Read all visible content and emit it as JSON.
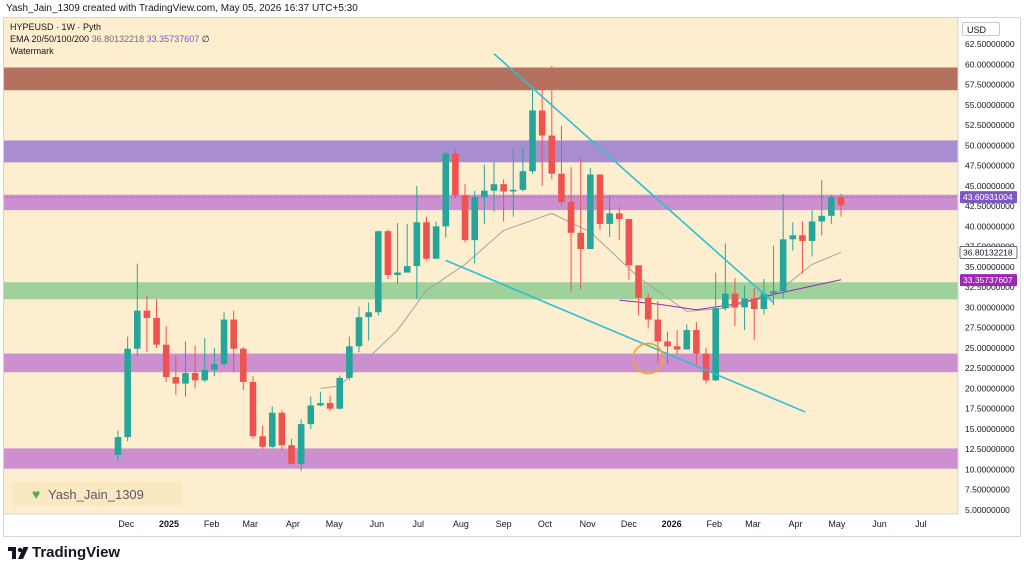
{
  "header": {
    "caption": "Yash_Jain_1309 created with TradingView.com, May 05, 2026 16:37 UTC+5:30"
  },
  "legend": {
    "title": "HYPEUSD · 1W · Pyth",
    "ema_label": "EMA 20/50/100/200",
    "ema_value_1": "36.80132218",
    "ema_value_2": "33.35737607",
    "ema_value_3": "∅",
    "watermark": "Watermark"
  },
  "currency": "USD",
  "watermark": {
    "label": "Yash_Jain_1309",
    "icon": "green-heart-icon"
  },
  "footer": {
    "brand": "TradingView",
    "icon": "tradingview-logo-icon"
  },
  "colors": {
    "background": "#fdeecf",
    "up": "#26a69a",
    "down": "#ef5350",
    "band_red": "#b57160",
    "band_purple": "#a88dd0",
    "band_pink": "#cc8fd0",
    "band_green": "#9fd19a",
    "trendline": "#2cc0d6",
    "ema_slow": "#9c27b0",
    "ema_fast": "#a3a3a3",
    "circle": "#f7a227"
  },
  "chart_data": {
    "type": "candlestick",
    "symbol": "HYPEUSD",
    "interval": "1W",
    "source": "Pyth",
    "y_axis": {
      "min": 5.0,
      "max": 62.5,
      "ticks": [
        "62.50000000",
        "60.00000000",
        "57.50000000",
        "55.00000000",
        "52.50000000",
        "50.00000000",
        "47.50000000",
        "45.00000000",
        "42.50000000",
        "40.00000000",
        "37.50000000",
        "35.00000000",
        "32.50000000",
        "30.00000000",
        "27.50000000",
        "25.00000000",
        "22.50000000",
        "20.00000000",
        "17.50000000",
        "15.00000000",
        "12.50000000",
        "10.00000000",
        "7.50000000",
        "5.00000000"
      ]
    },
    "x_axis": {
      "start_date": "2024-11-25",
      "months": [
        {
          "label": "Dec",
          "date": "2024-12-01"
        },
        {
          "label": "2025",
          "date": "2025-01-01"
        },
        {
          "label": "Feb",
          "date": "2025-02-01"
        },
        {
          "label": "Mar",
          "date": "2025-03-01"
        },
        {
          "label": "Apr",
          "date": "2025-04-01"
        },
        {
          "label": "May",
          "date": "2025-05-01"
        },
        {
          "label": "Jun",
          "date": "2025-06-01"
        },
        {
          "label": "Jul",
          "date": "2025-07-01"
        },
        {
          "label": "Aug",
          "date": "2025-08-01"
        },
        {
          "label": "Sep",
          "date": "2025-09-01"
        },
        {
          "label": "Oct",
          "date": "2025-10-01"
        },
        {
          "label": "Nov",
          "date": "2025-11-01"
        },
        {
          "label": "Dec",
          "date": "2025-12-01"
        },
        {
          "label": "2026",
          "date": "2026-01-01"
        },
        {
          "label": "Feb",
          "date": "2026-02-01"
        },
        {
          "label": "Mar",
          "date": "2026-03-01"
        },
        {
          "label": "Apr",
          "date": "2026-04-01"
        },
        {
          "label": "May",
          "date": "2026-05-01"
        },
        {
          "label": "Jun",
          "date": "2026-06-01"
        },
        {
          "label": "Jul",
          "date": "2026-07-01"
        }
      ]
    },
    "price_labels": [
      {
        "value": 43.60931004,
        "text": "43.60931004",
        "color": "#7e57c2"
      },
      {
        "value": 36.80132218,
        "text": "36.80132218",
        "color": "#ffffff"
      },
      {
        "value": 33.35737607,
        "text": "33.35737607",
        "color": "#9c27b0"
      }
    ],
    "zones": [
      {
        "low": 56.8,
        "high": 59.6,
        "color": "band_red"
      },
      {
        "low": 47.9,
        "high": 50.6,
        "color": "band_purple"
      },
      {
        "low": 42.0,
        "high": 43.9,
        "color": "band_pink"
      },
      {
        "low": 31.0,
        "high": 33.1,
        "color": "band_green"
      },
      {
        "low": 22.0,
        "high": 24.3,
        "color": "band_pink"
      },
      {
        "low": 10.1,
        "high": 12.6,
        "color": "band_pink"
      }
    ],
    "trendlines": [
      {
        "from": {
          "date": "2025-08-25",
          "price": 61.3
        },
        "to": {
          "date": "2026-03-16",
          "price": 30.6
        }
      },
      {
        "from": {
          "date": "2025-07-21",
          "price": 35.8
        },
        "to": {
          "date": "2026-04-08",
          "price": 17.1
        }
      }
    ],
    "circle_marker": {
      "date": "2025-12-15",
      "price": 23.7
    },
    "ema_fast": [
      [
        "2025-04-21",
        20.0
      ],
      [
        "2025-05-05",
        20.3
      ],
      [
        "2025-05-26",
        23.8
      ],
      [
        "2025-06-16",
        27.2
      ],
      [
        "2025-07-07",
        32.1
      ],
      [
        "2025-08-04",
        35.3
      ],
      [
        "2025-09-01",
        39.5
      ],
      [
        "2025-10-06",
        41.6
      ],
      [
        "2025-11-03",
        39.3
      ],
      [
        "2025-12-08",
        33.7
      ],
      [
        "2026-01-12",
        29.5
      ],
      [
        "2026-02-09",
        29.9
      ],
      [
        "2026-03-16",
        31.5
      ],
      [
        "2026-04-13",
        35.3
      ],
      [
        "2026-05-04",
        36.8
      ]
    ],
    "ema_slow": [
      [
        "2025-11-24",
        30.9
      ],
      [
        "2025-12-22",
        30.4
      ],
      [
        "2026-01-19",
        29.7
      ],
      [
        "2026-02-16",
        30.4
      ],
      [
        "2026-03-16",
        31.6
      ],
      [
        "2026-05-04",
        33.4
      ]
    ],
    "candles": [
      [
        "2024-11-25",
        11.8,
        14.0,
        14.8,
        11.0
      ],
      [
        "2024-12-02",
        14.0,
        24.9,
        26.4,
        13.5
      ],
      [
        "2024-12-09",
        24.9,
        29.6,
        35.4,
        24.0
      ],
      [
        "2024-12-16",
        29.6,
        28.7,
        31.4,
        24.5
      ],
      [
        "2024-12-23",
        28.7,
        25.4,
        31.0,
        25.0
      ],
      [
        "2024-12-30",
        25.4,
        21.4,
        27.7,
        20.8
      ],
      [
        "2025-01-06",
        21.4,
        20.6,
        24.0,
        19.2
      ],
      [
        "2025-01-13",
        20.6,
        21.9,
        25.8,
        19.0
      ],
      [
        "2025-01-20",
        21.9,
        21.0,
        25.3,
        20.0
      ],
      [
        "2025-01-27",
        21.0,
        22.3,
        26.2,
        20.8
      ],
      [
        "2025-02-03",
        22.3,
        23.0,
        25.0,
        21.5
      ],
      [
        "2025-02-10",
        23.0,
        28.5,
        29.4,
        22.7
      ],
      [
        "2025-02-17",
        28.5,
        24.9,
        29.6,
        22.0
      ],
      [
        "2025-02-24",
        24.9,
        20.8,
        25.1,
        19.8
      ],
      [
        "2025-03-03",
        20.8,
        14.1,
        21.5,
        13.8
      ],
      [
        "2025-03-10",
        14.1,
        12.8,
        15.4,
        12.5
      ],
      [
        "2025-03-17",
        12.8,
        17.0,
        17.8,
        12.6
      ],
      [
        "2025-03-24",
        17.0,
        13.0,
        17.3,
        12.4
      ],
      [
        "2025-03-31",
        13.0,
        10.7,
        13.8,
        10.6
      ],
      [
        "2025-04-07",
        10.7,
        15.6,
        16.2,
        9.8
      ],
      [
        "2025-04-14",
        15.6,
        17.9,
        19.0,
        15.0
      ],
      [
        "2025-04-21",
        17.9,
        18.2,
        19.6,
        17.8
      ],
      [
        "2025-04-28",
        18.2,
        17.5,
        19.1,
        17.2
      ],
      [
        "2025-05-05",
        17.5,
        21.3,
        21.6,
        17.4
      ],
      [
        "2025-05-12",
        21.3,
        25.2,
        26.4,
        21.0
      ],
      [
        "2025-05-19",
        25.2,
        28.8,
        30.1,
        24.5
      ],
      [
        "2025-05-26",
        28.8,
        29.4,
        30.6,
        25.9
      ],
      [
        "2025-06-02",
        29.4,
        39.4,
        39.5,
        29.0
      ],
      [
        "2025-06-09",
        39.4,
        34.0,
        39.6,
        33.5
      ],
      [
        "2025-06-16",
        34.0,
        34.3,
        40.4,
        32.9
      ],
      [
        "2025-06-23",
        34.3,
        35.1,
        40.3,
        34.4
      ],
      [
        "2025-06-30",
        35.1,
        40.5,
        45.0,
        31.0
      ],
      [
        "2025-07-07",
        40.5,
        36.0,
        41.2,
        35.8
      ],
      [
        "2025-07-14",
        36.0,
        40.0,
        40.6,
        37.5
      ],
      [
        "2025-07-21",
        40.0,
        49.0,
        49.3,
        38.6
      ],
      [
        "2025-07-28",
        49.0,
        43.8,
        49.5,
        43.5
      ],
      [
        "2025-08-04",
        43.8,
        38.3,
        45.2,
        38.0
      ],
      [
        "2025-08-11",
        38.3,
        43.6,
        44.4,
        35.4
      ],
      [
        "2025-08-18",
        43.6,
        44.4,
        47.6,
        40.3
      ],
      [
        "2025-08-25",
        44.4,
        45.2,
        48.0,
        41.8
      ],
      [
        "2025-09-01",
        45.2,
        44.3,
        45.8,
        40.6
      ],
      [
        "2025-09-08",
        44.3,
        44.5,
        49.5,
        41.2
      ],
      [
        "2025-09-15",
        44.5,
        46.8,
        49.8,
        44.3
      ],
      [
        "2025-09-22",
        46.8,
        54.3,
        57.2,
        46.5
      ],
      [
        "2025-09-29",
        54.3,
        51.2,
        58.0,
        45.0
      ],
      [
        "2025-10-06",
        51.2,
        46.5,
        59.8,
        45.8
      ],
      [
        "2025-10-13",
        46.5,
        43.0,
        52.4,
        42.5
      ],
      [
        "2025-10-20",
        43.0,
        39.2,
        47.3,
        32.0
      ],
      [
        "2025-10-27",
        39.2,
        37.2,
        48.5,
        32.2
      ],
      [
        "2025-11-03",
        37.2,
        46.4,
        47.2,
        40.2
      ],
      [
        "2025-11-10",
        46.4,
        40.3,
        43.9,
        39.6
      ],
      [
        "2025-11-17",
        40.3,
        41.6,
        43.8,
        38.7
      ],
      [
        "2025-11-24",
        41.6,
        40.9,
        42.4,
        38.3
      ],
      [
        "2025-12-01",
        40.9,
        35.2,
        40.7,
        33.4
      ],
      [
        "2025-12-08",
        35.2,
        31.2,
        33.8,
        29.0
      ],
      [
        "2025-12-15",
        31.2,
        28.5,
        31.7,
        27.4
      ],
      [
        "2025-12-22",
        28.5,
        25.8,
        30.8,
        23.2
      ],
      [
        "2025-12-29",
        25.8,
        25.2,
        27.0,
        23.0
      ],
      [
        "2026-01-05",
        25.2,
        24.8,
        27.2,
        24.2
      ],
      [
        "2026-01-12",
        24.8,
        27.2,
        27.9,
        24.9
      ],
      [
        "2026-01-19",
        27.2,
        24.3,
        28.2,
        22.6
      ],
      [
        "2026-01-26",
        24.3,
        21.0,
        25.0,
        20.6
      ],
      [
        "2026-02-02",
        21.0,
        29.9,
        34.3,
        20.9
      ],
      [
        "2026-02-09",
        29.9,
        31.7,
        37.9,
        29.6
      ],
      [
        "2026-02-16",
        31.7,
        30.0,
        33.6,
        27.7
      ],
      [
        "2026-02-23",
        30.0,
        31.1,
        32.7,
        27.2
      ],
      [
        "2026-03-02",
        31.1,
        29.8,
        32.4,
        26.0
      ],
      [
        "2026-03-09",
        29.8,
        31.7,
        33.5,
        29.1
      ],
      [
        "2026-03-16",
        31.7,
        32.0,
        37.6,
        30.3
      ],
      [
        "2026-03-23",
        32.0,
        38.4,
        44.0,
        31.1
      ],
      [
        "2026-03-30",
        38.4,
        38.9,
        40.5,
        37.0
      ],
      [
        "2026-04-06",
        38.9,
        38.2,
        40.6,
        34.2
      ],
      [
        "2026-04-13",
        38.2,
        40.6,
        42.0,
        36.3
      ],
      [
        "2026-04-20",
        40.6,
        41.3,
        45.7,
        38.9
      ],
      [
        "2026-04-27",
        41.3,
        43.6,
        43.9,
        40.3
      ],
      [
        "2026-05-04",
        43.6,
        42.6,
        44.0,
        41.2
      ]
    ]
  }
}
